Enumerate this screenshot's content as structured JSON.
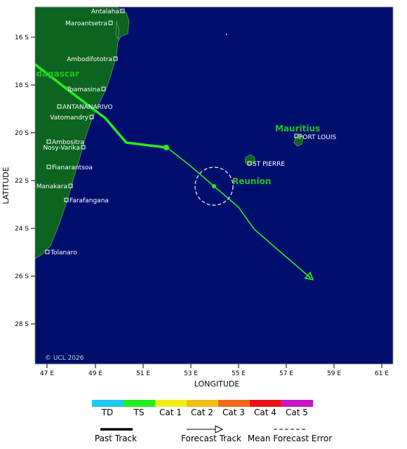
{
  "map": {
    "copyright": "© UCL 2026",
    "x_axis_title": "LONGITUDE",
    "y_axis_title": "LATITUDE",
    "lon_ticks": [
      "47 E",
      "49 E",
      "51 E",
      "53 E",
      "55 E",
      "57 E",
      "59 E",
      "61 E"
    ],
    "lat_ticks": [
      "16 S",
      "18 S",
      "20 S",
      "22 S",
      "24 S",
      "26 S",
      "28 S"
    ],
    "places": [
      "Antalaha",
      "Maroantsetra",
      "Ambodifototra",
      "Toamasina",
      "ANTANANARIVO",
      "Vatomandry",
      "Ambositra",
      "Nosy-Varika",
      "Fianarantsoa",
      "Manakara",
      "Farafangana",
      "Tolanaro",
      "PORT LOUIS",
      "ST PIERRE"
    ],
    "regions": [
      "Madagascar",
      "Mauritius",
      "Reunion"
    ],
    "colors": {
      "ocean": "#000f6e",
      "land": "#0b6420",
      "track_ts": "#22ee22"
    }
  },
  "legend": {
    "categories": [
      {
        "label": "TD",
        "color": "#1ec8f0"
      },
      {
        "label": "TS",
        "color": "#22ee22"
      },
      {
        "label": "Cat 1",
        "color": "#f0ee1a"
      },
      {
        "label": "Cat 2",
        "color": "#f0c01a"
      },
      {
        "label": "Cat 3",
        "color": "#f06a1a"
      },
      {
        "label": "Cat 4",
        "color": "#e8141a"
      },
      {
        "label": "Cat 5",
        "color": "#c814c8"
      }
    ],
    "past_track": "Past Track",
    "forecast_track": "Forecast Track",
    "mean_error": "Mean Forecast Error"
  }
}
